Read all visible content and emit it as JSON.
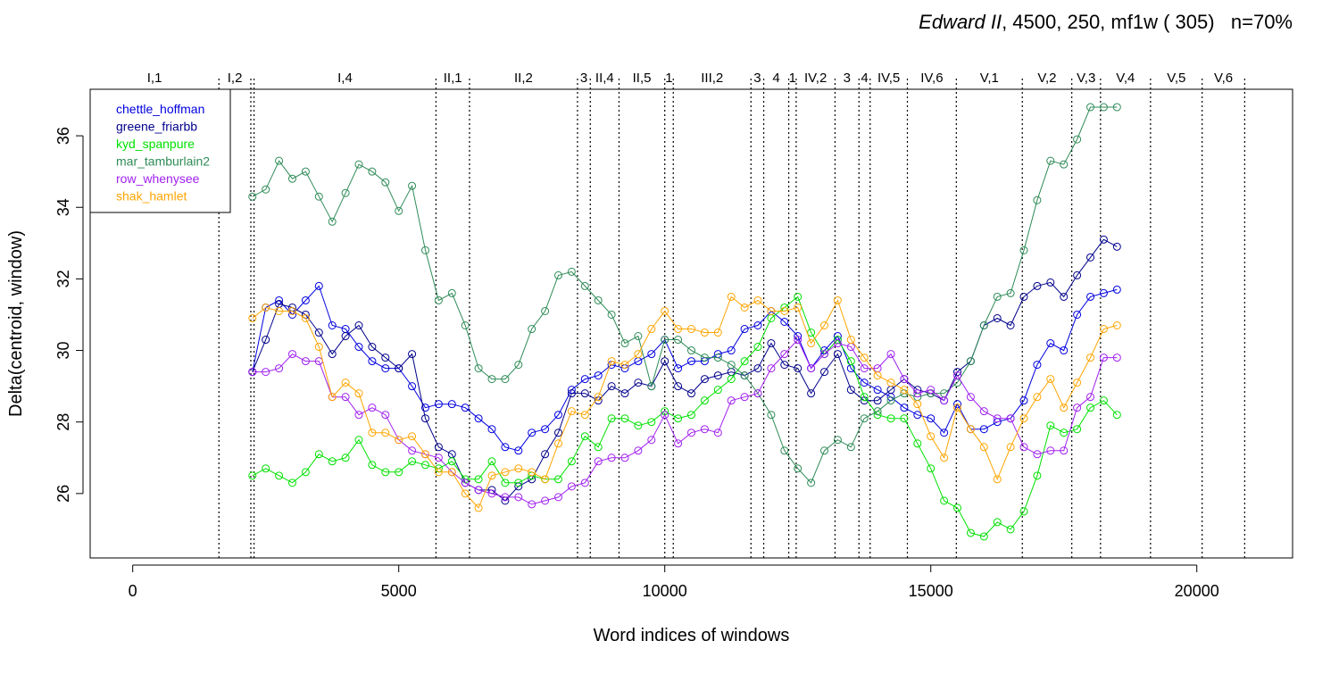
{
  "chart_data": {
    "type": "line",
    "title_italic": "Edward II",
    "title_rest": ", 4500, 250, mf1w ( 305)   n=70%",
    "xlabel": "Word indices of windows",
    "ylabel": "Delta(centroid, window)",
    "xlim": [
      -800,
      21800
    ],
    "ylim": [
      24.2,
      37.3
    ],
    "x_ticks": [
      0,
      5000,
      10000,
      15000,
      20000
    ],
    "y_ticks": [
      26,
      28,
      30,
      32,
      34,
      36
    ],
    "grid": false,
    "legend_position": "top-left",
    "scene_markers": [
      {
        "label": "I,1",
        "x": 1620
      },
      {
        "label": "I,2",
        "x": 2220
      },
      {
        "label": "",
        "x": 2280
      },
      {
        "label": "I,4",
        "x": 5700
      },
      {
        "label": "II,1",
        "x": 6330
      },
      {
        "label": "II,2",
        "x": 8360
      },
      {
        "label": "3",
        "x": 8600
      },
      {
        "label": "II,4",
        "x": 9140
      },
      {
        "label": "II,5",
        "x": 10000
      },
      {
        "label": "1",
        "x": 10160
      },
      {
        "label": "III,2",
        "x": 11620
      },
      {
        "label": "3",
        "x": 11860
      },
      {
        "label": "4",
        "x": 12330
      },
      {
        "label": "1",
        "x": 12470
      },
      {
        "label": "IV,2",
        "x": 13200
      },
      {
        "label": "3",
        "x": 13650
      },
      {
        "label": "4",
        "x": 13860
      },
      {
        "label": "IV,5",
        "x": 14560
      },
      {
        "label": "IV,6",
        "x": 15480
      },
      {
        "label": "V,1",
        "x": 16720
      },
      {
        "label": "V,2",
        "x": 17650
      },
      {
        "label": "V,3",
        "x": 18190
      },
      {
        "label": "V,4",
        "x": 19130
      },
      {
        "label": "V,5",
        "x": 20100
      },
      {
        "label": "V,6",
        "x": 20900
      }
    ],
    "x": [
      2250,
      2500,
      2750,
      3000,
      3250,
      3500,
      3750,
      4000,
      4250,
      4500,
      4750,
      5000,
      5250,
      5500,
      5750,
      6000,
      6250,
      6500,
      6750,
      7000,
      7250,
      7500,
      7750,
      8000,
      8250,
      8500,
      8750,
      9000,
      9250,
      9500,
      9750,
      10000,
      10250,
      10500,
      10750,
      11000,
      11250,
      11500,
      11750,
      12000,
      12250,
      12500,
      12750,
      13000,
      13250,
      13500,
      13750,
      14000,
      14250,
      14500,
      14750,
      15000,
      15250,
      15500,
      15750,
      16000,
      16250,
      16500,
      16750,
      17000,
      17250,
      17500,
      17750,
      18000,
      18250,
      18500
    ],
    "series": [
      {
        "name": "chettle_hoffman",
        "color": "#0000e0",
        "values": [
          29.4,
          31.2,
          31.4,
          31.0,
          31.4,
          31.8,
          30.7,
          30.6,
          30.1,
          29.7,
          29.5,
          29.5,
          29.0,
          28.4,
          28.5,
          28.5,
          28.4,
          28.1,
          27.8,
          27.3,
          27.2,
          27.7,
          27.8,
          28.2,
          28.9,
          29.2,
          29.3,
          29.6,
          29.5,
          29.7,
          29.9,
          30.3,
          29.5,
          29.7,
          29.7,
          29.9,
          30.0,
          30.6,
          30.7,
          31.1,
          30.8,
          30.4,
          29.5,
          30.0,
          30.4,
          29.5,
          29.1,
          28.9,
          28.7,
          28.4,
          28.2,
          28.1,
          27.7,
          28.5,
          27.8,
          27.8,
          28.0,
          28.1,
          28.6,
          29.6,
          30.2,
          30.0,
          31.0,
          31.5,
          31.6,
          31.7
        ]
      },
      {
        "name": "greene_friarbb",
        "color": "#00008b",
        "values": [
          29.4,
          30.3,
          31.3,
          31.2,
          31.0,
          30.5,
          29.9,
          30.4,
          30.7,
          30.1,
          29.8,
          29.5,
          29.9,
          28.1,
          27.3,
          27.1,
          26.3,
          26.1,
          26.1,
          25.8,
          26.2,
          26.4,
          27.1,
          27.7,
          28.8,
          28.8,
          28.6,
          29.0,
          28.8,
          29.1,
          29.0,
          29.7,
          29.0,
          28.8,
          29.2,
          29.3,
          29.4,
          29.3,
          29.5,
          30.2,
          29.6,
          29.5,
          28.8,
          29.4,
          29.9,
          28.9,
          28.6,
          28.6,
          28.9,
          29.2,
          28.9,
          28.8,
          28.6,
          29.4,
          29.7,
          30.7,
          30.9,
          30.7,
          31.5,
          31.8,
          31.9,
          31.5,
          32.1,
          32.6,
          33.1,
          32.9
        ]
      },
      {
        "name": "kyd_spanpure",
        "color": "#00e000",
        "values": [
          26.5,
          26.7,
          26.5,
          26.3,
          26.6,
          27.1,
          26.9,
          27.0,
          27.5,
          26.8,
          26.6,
          26.6,
          26.9,
          26.8,
          26.7,
          26.9,
          26.4,
          26.4,
          26.9,
          26.3,
          26.3,
          26.5,
          26.4,
          26.4,
          26.9,
          27.6,
          27.3,
          28.1,
          28.1,
          27.9,
          28.0,
          28.3,
          28.1,
          28.2,
          28.6,
          28.9,
          29.2,
          29.7,
          30.1,
          30.9,
          31.2,
          31.5,
          30.5,
          29.9,
          30.3,
          29.7,
          28.7,
          28.2,
          28.1,
          28.1,
          27.4,
          26.7,
          25.8,
          25.6,
          24.9,
          24.8,
          25.2,
          25.0,
          25.5,
          26.5,
          27.9,
          27.7,
          27.8,
          28.4,
          28.6,
          28.2
        ]
      },
      {
        "name": "mar_tamburlain2",
        "color": "#2e8b57",
        "values": [
          34.3,
          34.5,
          35.3,
          34.8,
          35.0,
          34.3,
          33.6,
          34.4,
          35.2,
          35.0,
          34.7,
          33.9,
          34.6,
          32.8,
          31.4,
          31.6,
          30.7,
          29.5,
          29.2,
          29.2,
          29.6,
          30.6,
          31.1,
          32.1,
          32.2,
          31.8,
          31.4,
          31.0,
          30.2,
          30.4,
          29.0,
          30.3,
          30.3,
          30.0,
          29.8,
          29.8,
          29.6,
          29.3,
          28.8,
          28.2,
          27.2,
          26.7,
          26.3,
          27.2,
          27.5,
          27.3,
          28.1,
          28.3,
          28.6,
          28.8,
          28.7,
          28.8,
          28.8,
          29.1,
          29.7,
          30.7,
          31.5,
          31.6,
          32.8,
          34.2,
          35.3,
          35.2,
          35.9,
          36.8,
          36.8,
          36.8
        ]
      },
      {
        "name": "row_whenysee",
        "color": "#a020f0",
        "values": [
          29.4,
          29.4,
          29.5,
          29.9,
          29.7,
          29.7,
          28.7,
          28.7,
          28.2,
          28.4,
          28.2,
          27.5,
          27.2,
          27.1,
          27.0,
          26.6,
          26.3,
          26.1,
          26.0,
          25.9,
          25.9,
          25.7,
          25.8,
          25.9,
          26.2,
          26.3,
          26.9,
          27.0,
          27.0,
          27.2,
          27.5,
          28.2,
          27.4,
          27.7,
          27.8,
          27.7,
          28.6,
          28.7,
          28.8,
          29.5,
          29.9,
          30.3,
          29.5,
          29.9,
          30.2,
          30.1,
          29.5,
          29.5,
          29.9,
          29.2,
          28.8,
          28.9,
          28.6,
          29.3,
          28.7,
          28.3,
          28.1,
          28.1,
          27.3,
          27.1,
          27.2,
          27.2,
          28.4,
          28.7,
          29.8,
          29.8
        ]
      },
      {
        "name": "shak_hamlet",
        "color": "#ffa500",
        "values": [
          30.9,
          31.2,
          31.1,
          31.1,
          30.9,
          30.1,
          28.7,
          29.1,
          28.8,
          27.7,
          27.7,
          27.5,
          27.6,
          27.1,
          26.6,
          26.6,
          26.0,
          25.6,
          26.5,
          26.6,
          26.7,
          26.6,
          26.4,
          27.4,
          28.3,
          28.2,
          28.7,
          29.7,
          29.6,
          29.9,
          30.6,
          31.1,
          30.6,
          30.6,
          30.5,
          30.5,
          31.5,
          31.2,
          31.4,
          31.1,
          31.1,
          31.2,
          30.2,
          30.7,
          31.4,
          30.3,
          29.8,
          29.3,
          29.1,
          28.9,
          28.5,
          27.6,
          27.0,
          28.4,
          27.8,
          27.3,
          26.4,
          27.3,
          28.1,
          28.7,
          29.2,
          28.4,
          29.1,
          29.8,
          30.6,
          30.7
        ]
      }
    ]
  }
}
